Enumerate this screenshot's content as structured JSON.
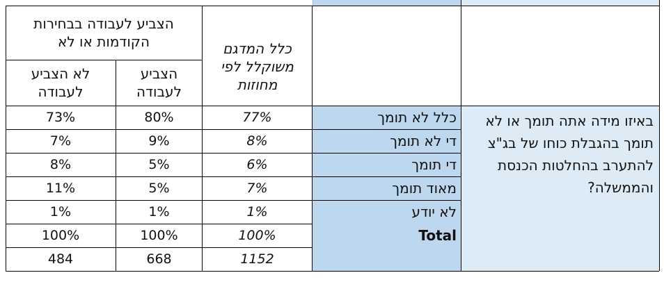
{
  "header": {
    "group_header": "הצביע לעבודה בבחירות הקודמות או לא",
    "col_total": "כלל המדגם משוקלל לפי מחוזות",
    "col_voted": "הצביע לעבודה",
    "col_not_voted": "לא הצביע לעבודה"
  },
  "question": "באיזו מידה אתה תומך או לא תומך בהגבלת כוחו של בג\"צ להתערב בהחלטות הכנסת והממשלה?",
  "rows": [
    {
      "label": "כלל לא תומך",
      "total": "77%",
      "voted": "80%",
      "not_voted": "73%"
    },
    {
      "label": "די לא תומך",
      "total": "8%",
      "voted": "9%",
      "not_voted": "7%"
    },
    {
      "label": "די תומך",
      "total": "6%",
      "voted": "5%",
      "not_voted": "8%"
    },
    {
      "label": "מאוד תומך",
      "total": "7%",
      "voted": "5%",
      "not_voted": "11%"
    },
    {
      "label": "לא יודע",
      "total": "1%",
      "voted": "1%",
      "not_voted": "1%"
    },
    {
      "label": "Total",
      "total": "100%",
      "voted": "100%",
      "not_voted": "100%"
    },
    {
      "label": "",
      "total": "1152",
      "voted": "668",
      "not_voted": "484"
    }
  ]
}
